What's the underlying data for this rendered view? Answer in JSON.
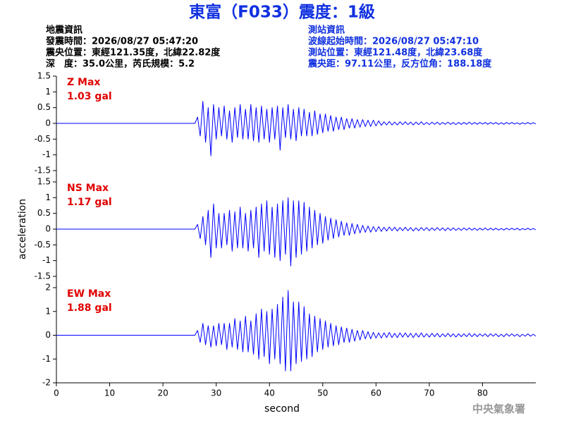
{
  "title": "東富（F033）震度：1級",
  "info_left": [
    "地震資訊",
    "發震時間：2026/08/27 05:47:20",
    "震央位置：東經121.35度，北緯22.82度",
    "深　度：35.0公里，芮氏規模：5.2"
  ],
  "info_right": [
    "測站資訊",
    "波線起始時間：2026/08/27 05:47:10",
    "測站位置：東經121.48度，北緯23.68度",
    "震央距：97.11公里，反方位角：188.18度"
  ],
  "watermark": "中央氣象署",
  "chart_data": [
    {
      "type": "line",
      "annotations": [
        "Z Max",
        "1.03 gal"
      ],
      "color": "#0000ff",
      "annotation_color": "#e00000",
      "xlim": [
        0,
        90
      ],
      "ylim": [
        -1.5,
        1.5
      ],
      "yticks": [
        -1.5,
        -1,
        -0.5,
        0,
        0.5,
        1,
        1.5
      ],
      "x": [
        0,
        26,
        26.5,
        27,
        27.5,
        28,
        28.5,
        29,
        29.5,
        30,
        30.5,
        31,
        31.5,
        32,
        32.5,
        33,
        33.5,
        34,
        34.5,
        35,
        35.5,
        36,
        36.5,
        37,
        37.5,
        38,
        38.5,
        39,
        39.5,
        40,
        40.5,
        41,
        41.5,
        42,
        42.5,
        43,
        43.5,
        44,
        44.5,
        45,
        45.5,
        46,
        46.5,
        47,
        47.5,
        48,
        48.5,
        49,
        49.5,
        50,
        50.5,
        51,
        51.5,
        52,
        52.5,
        53,
        53.5,
        54,
        54.5,
        55,
        55.5,
        56,
        56.5,
        57,
        57.5,
        58,
        58.5,
        59,
        59.5,
        60,
        60.5,
        61,
        61.5,
        62,
        62.5,
        63,
        63.5,
        64,
        64.5,
        65,
        65.5,
        66,
        66.5,
        67,
        67.5,
        68,
        68.5,
        69,
        69.5,
        70,
        70.5,
        71,
        71.5,
        72,
        72.5,
        73,
        73.5,
        74,
        74.5,
        75,
        75.5,
        76,
        76.5,
        77,
        77.5,
        78,
        78.5,
        79,
        79.5,
        80,
        80.5,
        81,
        81.5,
        82,
        82.5,
        83,
        83.5,
        84,
        84.5,
        85,
        85.5,
        86,
        86.5,
        87,
        87.5,
        88,
        88.5,
        89,
        89.5,
        90
      ],
      "values": [
        0,
        0,
        0.2,
        -0.4,
        0.7,
        -0.6,
        0.5,
        -1.03,
        0.6,
        -0.5,
        0.5,
        -0.4,
        0.55,
        -0.5,
        0.4,
        -0.6,
        0.5,
        -0.45,
        0.6,
        -0.5,
        0.45,
        -0.5,
        0.6,
        -0.55,
        0.5,
        -0.6,
        0.55,
        -0.5,
        0.45,
        -0.6,
        0.5,
        -0.5,
        0.55,
        -0.85,
        0.5,
        -0.45,
        0.6,
        -0.5,
        0.45,
        -0.55,
        0.5,
        -0.4,
        0.45,
        -0.4,
        0.35,
        -0.4,
        0.4,
        -0.35,
        0.3,
        -0.3,
        0.3,
        -0.25,
        0.25,
        -0.25,
        0.2,
        -0.2,
        0.2,
        -0.2,
        0.15,
        -0.15,
        0.15,
        -0.15,
        0.12,
        -0.12,
        0.12,
        -0.1,
        0.1,
        -0.1,
        0.1,
        -0.08,
        0.08,
        -0.06,
        0.05,
        -0.05,
        0.06,
        -0.05,
        0.04,
        -0.05,
        0.05,
        -0.04,
        0.05,
        -0.04,
        0.04,
        -0.05,
        0.04,
        -0.04,
        0.05,
        -0.04,
        0.03,
        -0.04,
        0.04,
        -0.03,
        0.04,
        -0.04,
        0.03,
        -0.03,
        0.04,
        -0.03,
        0.03,
        -0.04,
        0.03,
        -0.03,
        0.03,
        -0.03,
        0.04,
        -0.03,
        0.03,
        -0.03,
        0.03,
        -0.02,
        0.03,
        -0.03,
        0.03,
        -0.02,
        0.03,
        -0.03,
        0.02,
        -0.03,
        0.03,
        -0.02,
        0.03,
        -0.02,
        0.02,
        -0.03,
        0.02,
        -0.02,
        0.03,
        -0.02,
        0.02,
        -0.02
      ]
    },
    {
      "type": "line",
      "annotations": [
        "NS Max",
        "1.17 gal"
      ],
      "color": "#0000ff",
      "annotation_color": "#e00000",
      "ylabel": "acceleration",
      "xlim": [
        0,
        90
      ],
      "ylim": [
        -1.5,
        1.5
      ],
      "yticks": [
        -1.5,
        -1,
        -0.5,
        0,
        0.5,
        1,
        1.5
      ],
      "x": [
        0,
        26,
        26.5,
        27,
        27.5,
        28,
        28.5,
        29,
        29.5,
        30,
        30.5,
        31,
        31.5,
        32,
        32.5,
        33,
        33.5,
        34,
        34.5,
        35,
        35.5,
        36,
        36.5,
        37,
        37.5,
        38,
        38.5,
        39,
        39.5,
        40,
        40.5,
        41,
        41.5,
        42,
        42.5,
        43,
        43.5,
        44,
        44.5,
        45,
        45.5,
        46,
        46.5,
        47,
        47.5,
        48,
        48.5,
        49,
        49.5,
        50,
        50.5,
        51,
        51.5,
        52,
        52.5,
        53,
        53.5,
        54,
        54.5,
        55,
        55.5,
        56,
        56.5,
        57,
        57.5,
        58,
        58.5,
        59,
        59.5,
        60,
        60.5,
        61,
        61.5,
        62,
        62.5,
        63,
        63.5,
        64,
        64.5,
        65,
        65.5,
        66,
        66.5,
        67,
        67.5,
        68,
        68.5,
        69,
        69.5,
        70,
        70.5,
        71,
        71.5,
        72,
        72.5,
        73,
        73.5,
        74,
        74.5,
        75,
        75.5,
        76,
        76.5,
        77,
        77.5,
        78,
        78.5,
        79,
        79.5,
        80,
        80.5,
        81,
        81.5,
        82,
        82.5,
        83,
        83.5,
        84,
        84.5,
        85,
        85.5,
        86,
        86.5,
        87,
        87.5,
        88,
        88.5,
        89,
        89.5,
        90
      ],
      "values": [
        0,
        0,
        0.15,
        -0.3,
        0.4,
        -0.5,
        0.6,
        -0.9,
        0.8,
        -0.6,
        0.5,
        -0.6,
        0.5,
        -0.5,
        0.6,
        -0.7,
        0.55,
        -0.6,
        0.7,
        -0.6,
        0.5,
        -0.7,
        0.6,
        -0.6,
        0.7,
        -0.9,
        0.8,
        -0.7,
        0.9,
        -0.8,
        0.7,
        -0.9,
        0.8,
        -1.0,
        0.9,
        -0.8,
        1.0,
        -1.17,
        0.9,
        -0.9,
        0.9,
        -0.8,
        0.85,
        -0.7,
        0.7,
        -0.6,
        0.6,
        -0.5,
        0.5,
        -0.45,
        0.4,
        -0.35,
        0.35,
        -0.3,
        0.3,
        -0.25,
        0.25,
        -0.2,
        0.2,
        -0.2,
        0.18,
        -0.15,
        0.15,
        -0.12,
        0.12,
        -0.1,
        0.1,
        -0.1,
        0.08,
        -0.08,
        0.08,
        -0.07,
        0.06,
        -0.06,
        0.07,
        -0.05,
        0.06,
        -0.06,
        0.05,
        -0.05,
        0.06,
        -0.05,
        0.05,
        -0.06,
        0.04,
        -0.05,
        0.05,
        -0.04,
        0.05,
        -0.05,
        0.04,
        -0.04,
        0.05,
        -0.04,
        0.04,
        -0.05,
        0.04,
        -0.04,
        0.04,
        -0.04,
        0.03,
        -0.04,
        0.04,
        -0.03,
        0.04,
        -0.03,
        0.03,
        -0.04,
        0.03,
        -0.03,
        0.04,
        -0.03,
        0.03,
        -0.03,
        0.03,
        -0.03,
        0.02,
        -0.03,
        0.03,
        -0.02,
        0.03,
        -0.02,
        0.03,
        -0.03,
        0.02,
        -0.02,
        0.03,
        -0.02,
        0.02,
        -0.02
      ]
    },
    {
      "type": "line",
      "annotations": [
        "EW Max",
        "1.88 gal"
      ],
      "color": "#0000ff",
      "annotation_color": "#e00000",
      "xlabel": "second",
      "xlim": [
        0,
        90
      ],
      "xticks": [
        0,
        10,
        20,
        30,
        40,
        50,
        60,
        70,
        80
      ],
      "ylim": [
        -2,
        2
      ],
      "yticks": [
        -2,
        -1,
        0,
        1,
        2
      ],
      "x": [
        0,
        26,
        26.5,
        27,
        27.5,
        28,
        28.5,
        29,
        29.5,
        30,
        30.5,
        31,
        31.5,
        32,
        32.5,
        33,
        33.5,
        34,
        34.5,
        35,
        35.5,
        36,
        36.5,
        37,
        37.5,
        38,
        38.5,
        39,
        39.5,
        40,
        40.5,
        41,
        41.5,
        42,
        42.5,
        43,
        43.5,
        44,
        44.5,
        45,
        45.5,
        46,
        46.5,
        47,
        47.5,
        48,
        48.5,
        49,
        49.5,
        50,
        50.5,
        51,
        51.5,
        52,
        52.5,
        53,
        53.5,
        54,
        54.5,
        55,
        55.5,
        56,
        56.5,
        57,
        57.5,
        58,
        58.5,
        59,
        59.5,
        60,
        60.5,
        61,
        61.5,
        62,
        62.5,
        63,
        63.5,
        64,
        64.5,
        65,
        65.5,
        66,
        66.5,
        67,
        67.5,
        68,
        68.5,
        69,
        69.5,
        70,
        70.5,
        71,
        71.5,
        72,
        72.5,
        73,
        73.5,
        74,
        74.5,
        75,
        75.5,
        76,
        76.5,
        77,
        77.5,
        78,
        78.5,
        79,
        79.5,
        80,
        80.5,
        81,
        81.5,
        82,
        82.5,
        83,
        83.5,
        84,
        84.5,
        85,
        85.5,
        86,
        86.5,
        87,
        87.5,
        88,
        88.5,
        89,
        89.5,
        90
      ],
      "values": [
        0,
        0,
        0.2,
        -0.3,
        0.5,
        -0.4,
        0.4,
        -0.5,
        0.4,
        -0.45,
        0.5,
        -0.4,
        0.5,
        -0.6,
        0.5,
        -0.5,
        0.7,
        -0.6,
        0.6,
        -0.7,
        0.8,
        -0.7,
        0.6,
        -0.8,
        0.9,
        -1.0,
        1.1,
        -0.9,
        1.0,
        -1.2,
        1.1,
        -1.0,
        1.3,
        -1.2,
        1.6,
        -1.5,
        1.88,
        -1.5,
        1.4,
        -1.2,
        1.4,
        -1.1,
        1.2,
        -1.0,
        0.9,
        -0.9,
        0.8,
        -0.7,
        0.7,
        -0.6,
        0.6,
        -0.5,
        0.5,
        -0.45,
        0.4,
        -0.4,
        0.35,
        -0.3,
        0.3,
        -0.3,
        0.25,
        -0.25,
        0.2,
        -0.2,
        0.2,
        -0.15,
        0.15,
        -0.15,
        0.12,
        -0.12,
        0.1,
        -0.12,
        0.1,
        -0.1,
        0.12,
        -0.1,
        0.08,
        -0.1,
        0.1,
        -0.08,
        0.1,
        -0.08,
        0.08,
        -0.1,
        0.08,
        -0.08,
        0.1,
        -0.08,
        0.06,
        -0.08,
        0.08,
        -0.06,
        0.08,
        -0.08,
        0.06,
        -0.06,
        0.08,
        -0.06,
        0.06,
        -0.08,
        0.06,
        -0.06,
        0.06,
        -0.06,
        0.08,
        -0.06,
        0.06,
        -0.06,
        0.06,
        -0.04,
        0.06,
        -0.06,
        0.06,
        -0.04,
        0.06,
        -0.06,
        0.04,
        -0.06,
        0.06,
        -0.04,
        0.06,
        -0.04,
        0.04,
        -0.06,
        0.04,
        -0.04,
        0.06,
        -0.04,
        0.04,
        -0.04
      ]
    }
  ]
}
